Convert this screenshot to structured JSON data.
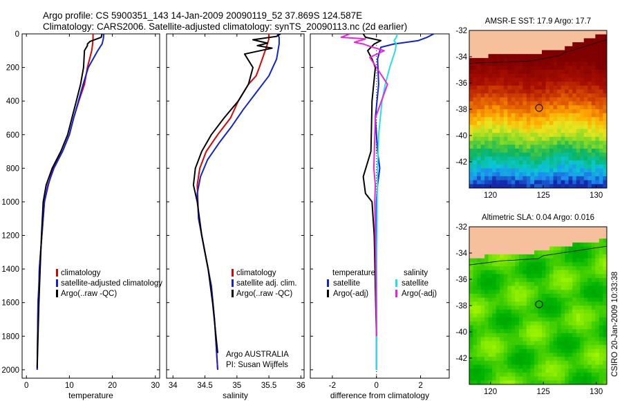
{
  "figure": {
    "title_line1": "Argo profile: CS 5900351_143 14-Jan-2009 20090119_52 37.869S 124.587E",
    "title_line2": "Climatology: CARS2006. Satellite-adjusted climatology: synTS_20090113.nc (2d earlier)",
    "credit": "Argo AUSTRALIA",
    "pi": "PI: Susan Wijffels",
    "side_label": "CSIRO 20-Jan-2009 10:33:38"
  },
  "colors": {
    "climatology": "#e00000",
    "satellite": "#1020e0",
    "argo": "#000000",
    "sal_satellite": "#20e0e8",
    "sal_argo": "#ee22dd",
    "land": "#f7c09c"
  },
  "chart_data": [
    {
      "type": "line",
      "xlabel": "temperature",
      "xlim": [
        -1,
        31
      ],
      "ylim": [
        2050,
        0
      ],
      "xticks": [
        0,
        10,
        20,
        30
      ],
      "yticks": [
        0,
        200,
        400,
        600,
        800,
        1000,
        1200,
        1400,
        1600,
        1800,
        2000
      ],
      "legend": {
        "placement": "lower-right",
        "entries": [
          "climatology",
          "satellite-adjusted climatology",
          "Argo(..raw -QC)"
        ]
      },
      "series": [
        {
          "name": "climatology",
          "x": [
            15.5,
            15.5,
            15.4,
            15.2,
            14.2,
            13.5,
            12.2,
            11,
            10,
            8.4,
            6.2,
            5.1,
            4.2,
            3.6,
            3.3,
            3,
            2.9,
            2.7,
            2.6,
            2.5
          ],
          "y": [
            0,
            30,
            60,
            100,
            200,
            300,
            400,
            500,
            600,
            700,
            800,
            900,
            1000,
            1200,
            1300,
            1400,
            1500,
            1600,
            1800,
            2000
          ]
        },
        {
          "name": "satellite-adjusted climatology",
          "x": [
            18,
            17.9,
            17.6,
            16.6,
            14.4,
            13.2,
            12.1,
            11,
            10,
            8.4,
            6.4,
            5,
            4.2,
            3.6,
            3.3,
            3,
            2.9,
            2.7,
            2.6,
            2.5
          ],
          "y": [
            0,
            30,
            60,
            100,
            200,
            300,
            400,
            500,
            600,
            700,
            800,
            900,
            1000,
            1200,
            1300,
            1400,
            1500,
            1600,
            1800,
            2000
          ]
        },
        {
          "name": "Argo(..raw -QC)",
          "x": [
            17.6,
            17.4,
            14.8,
            14.2,
            14.2,
            13.5,
            13.3,
            12.6,
            11.6,
            10.6,
            9.6,
            8,
            6,
            4.6,
            3.9,
            3.5,
            3.2,
            2.9,
            2.7,
            2.5
          ],
          "y": [
            0,
            20,
            45,
            60,
            70,
            100,
            200,
            300,
            400,
            500,
            600,
            700,
            800,
            900,
            1000,
            1200,
            1400,
            1600,
            1800,
            1990
          ]
        }
      ]
    },
    {
      "type": "line",
      "xlabel": "salinity",
      "xlim": [
        33.9,
        36.05
      ],
      "ylim": [
        2050,
        0
      ],
      "xticks": [
        34,
        34.5,
        35,
        35.5,
        36
      ],
      "legend": {
        "placement": "lower-right",
        "entries": [
          "climatology",
          "satellite adj. clim.",
          "Argo(..raw -QC)"
        ]
      },
      "series": [
        {
          "name": "climatology",
          "x": [
            35.5,
            35.5,
            35.46,
            35.35,
            35.3,
            35.18,
            35.02,
            34.9,
            34.7,
            34.52,
            34.42,
            34.38,
            34.4,
            34.5,
            34.6,
            34.65,
            34.7
          ],
          "y": [
            0,
            30,
            80,
            200,
            250,
            300,
            400,
            500,
            600,
            700,
            800,
            900,
            1100,
            1300,
            1500,
            1700,
            2000
          ]
        },
        {
          "name": "satellite adj. clim.",
          "x": [
            35.63,
            35.66,
            35.66,
            35.62,
            35.5,
            35.3,
            35.1,
            34.92,
            34.72,
            34.54,
            34.43,
            34.38,
            34.4,
            34.5,
            34.6,
            34.65,
            34.7
          ],
          "y": [
            0,
            20,
            60,
            150,
            250,
            350,
            450,
            550,
            650,
            750,
            850,
            950,
            1100,
            1300,
            1500,
            1700,
            2000
          ]
        },
        {
          "name": "Argo(..raw -QC)",
          "x": [
            35.68,
            35.62,
            35.25,
            35.48,
            35.32,
            35.55,
            35.12,
            35.25,
            35.18,
            35.02,
            34.8,
            34.6,
            34.45,
            34.35,
            34.32,
            34.38,
            34.45,
            34.55,
            34.62,
            34.7
          ],
          "y": [
            0,
            15,
            35,
            55,
            70,
            85,
            120,
            200,
            300,
            400,
            500,
            600,
            700,
            800,
            900,
            1000,
            1200,
            1400,
            1600,
            1900
          ]
        }
      ]
    },
    {
      "type": "line",
      "xlabel": "difference from climatology",
      "xlim": [
        -3,
        3.3
      ],
      "ylim": [
        2050,
        0
      ],
      "xticks": [
        -2,
        0,
        2
      ],
      "legend": {
        "placement": "lower-center",
        "headers": [
          "temperature",
          "salinity"
        ],
        "entries": [
          "satellite",
          "Argo(-adj)",
          "satellite",
          "Argo(-adj)"
        ]
      },
      "series": [
        {
          "name": "temperature satellite",
          "x": [
            2.6,
            2.3,
            1.9,
            0.8,
            0.2,
            0.05,
            0.1,
            -0.05,
            0.05,
            0.15,
            0.05,
            0,
            0,
            0,
            0,
            0,
            0
          ],
          "y": [
            0,
            20,
            40,
            60,
            80,
            150,
            300,
            500,
            700,
            800,
            900,
            1000,
            1200,
            1400,
            1600,
            1800,
            2000
          ]
        },
        {
          "name": "temperature Argo(-adj)",
          "x": [
            -0.6,
            -0.5,
            0.2,
            -0.1,
            -0.4,
            -0.2,
            -0.05,
            -0.2,
            -0.25,
            -0.6,
            -0.5,
            -0.2,
            -0.1,
            -0.05,
            0
          ],
          "y": [
            0,
            20,
            40,
            60,
            100,
            150,
            200,
            400,
            700,
            850,
            950,
            1000,
            1200,
            1500,
            1800
          ]
        },
        {
          "name": "salinity satellite",
          "x": [
            0.95,
            0.9,
            0.8,
            0.9,
            0.85,
            0.6,
            0.4,
            0.25,
            0.1,
            0.05,
            0.03,
            0.02,
            0,
            0,
            0,
            0
          ],
          "y": [
            0,
            20,
            40,
            60,
            100,
            200,
            300,
            400,
            600,
            800,
            1000,
            1200,
            1400,
            1600,
            1800,
            2000
          ]
        },
        {
          "name": "salinity Argo(-adj)",
          "x": [
            -1.2,
            -1.6,
            -0.5,
            -1.0,
            -0.6,
            -0.4,
            0.35,
            -0.3,
            0.5,
            -0.05,
            -0.12,
            -0.05,
            -0.08,
            -0.05,
            -0.02,
            0
          ],
          "y": [
            0,
            20,
            30,
            50,
            60,
            70,
            100,
            140,
            300,
            500,
            800,
            900,
            1000,
            1200,
            1500,
            1800
          ]
        }
      ]
    },
    {
      "type": "heatmap",
      "title": "AMSR-E SST: 17.9 Argo: 17.7",
      "xlim": [
        118,
        131
      ],
      "ylim": [
        -44,
        -32
      ],
      "xticks": [
        120,
        125,
        130
      ],
      "yticks": [
        -32,
        -34,
        -36,
        -38,
        -40,
        -42
      ],
      "marker": {
        "x": 124.6,
        "y": -37.9
      }
    },
    {
      "type": "heatmap",
      "title": "Altimetric SLA: 0.04 Argo: 0.016",
      "xlim": [
        118,
        131
      ],
      "ylim": [
        -44,
        -32
      ],
      "xticks": [
        120,
        125,
        130
      ],
      "yticks": [
        -32,
        -34,
        -36,
        -38,
        -40,
        -42
      ],
      "marker": {
        "x": 124.6,
        "y": -37.9
      }
    }
  ]
}
